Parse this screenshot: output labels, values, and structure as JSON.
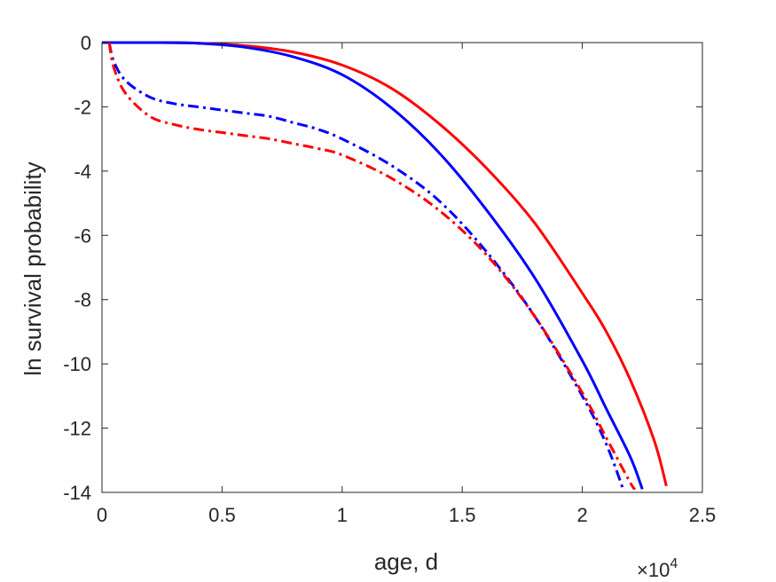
{
  "chart_data": {
    "type": "line",
    "xlabel": "age, d",
    "ylabel": "ln survival probability",
    "x_exponent_label": {
      "base": "×10",
      "exp": "4"
    },
    "xlim": [
      0,
      25000
    ],
    "ylim": [
      -14,
      0
    ],
    "xticks": [
      0,
      5000,
      10000,
      15000,
      20000,
      25000
    ],
    "xtick_labels": [
      "0",
      "0.5",
      "1",
      "1.5",
      "2",
      "2.5"
    ],
    "yticks": [
      0,
      -2,
      -4,
      -6,
      -8,
      -10,
      -12,
      -14
    ],
    "ytick_labels": [
      "0",
      "-2",
      "-4",
      "-6",
      "-8",
      "-10",
      "-12",
      "-14"
    ],
    "grid": false,
    "series": [
      {
        "color": "#ff0000",
        "style": "solid",
        "x": [
          0,
          2000,
          4000,
          6000,
          8000,
          10000,
          12000,
          14000,
          16000,
          18000,
          20000,
          21000,
          22000,
          23000,
          23500
        ],
        "y": [
          0,
          0,
          -0.02,
          -0.1,
          -0.3,
          -0.7,
          -1.4,
          -2.5,
          -3.9,
          -5.6,
          -7.8,
          -9.0,
          -10.5,
          -12.4,
          -13.8
        ]
      },
      {
        "color": "#0000ff",
        "style": "solid",
        "x": [
          0,
          2000,
          4000,
          6000,
          8000,
          10000,
          12000,
          14000,
          16000,
          18000,
          20000,
          21000,
          22000,
          22500
        ],
        "y": [
          0,
          0,
          -0.02,
          -0.15,
          -0.45,
          -1.0,
          -2.0,
          -3.4,
          -5.2,
          -7.3,
          -9.9,
          -11.4,
          -12.9,
          -13.9
        ]
      },
      {
        "color": "#0000ff",
        "style": "dashdot",
        "x": [
          300,
          500,
          1000,
          2000,
          3000,
          4000,
          5000,
          6000,
          7000,
          8000,
          9000,
          10000,
          12000,
          14000,
          16000,
          18000,
          20000,
          21000,
          21700
        ],
        "y": [
          0,
          -0.6,
          -1.2,
          -1.7,
          -1.9,
          -2.0,
          -2.1,
          -2.2,
          -2.3,
          -2.5,
          -2.7,
          -3.0,
          -3.8,
          -4.9,
          -6.5,
          -8.5,
          -11.0,
          -12.5,
          -13.9
        ]
      },
      {
        "color": "#ff0000",
        "style": "dashdot",
        "x": [
          300,
          500,
          1000,
          2000,
          3000,
          4000,
          5000,
          6000,
          7000,
          8000,
          9000,
          10000,
          12000,
          14000,
          16000,
          18000,
          20000,
          21000,
          22000,
          22200
        ],
        "y": [
          0,
          -0.8,
          -1.6,
          -2.3,
          -2.55,
          -2.7,
          -2.8,
          -2.9,
          -3.0,
          -3.15,
          -3.3,
          -3.5,
          -4.2,
          -5.2,
          -6.6,
          -8.5,
          -10.9,
          -12.3,
          -13.7,
          -13.9
        ]
      }
    ]
  }
}
